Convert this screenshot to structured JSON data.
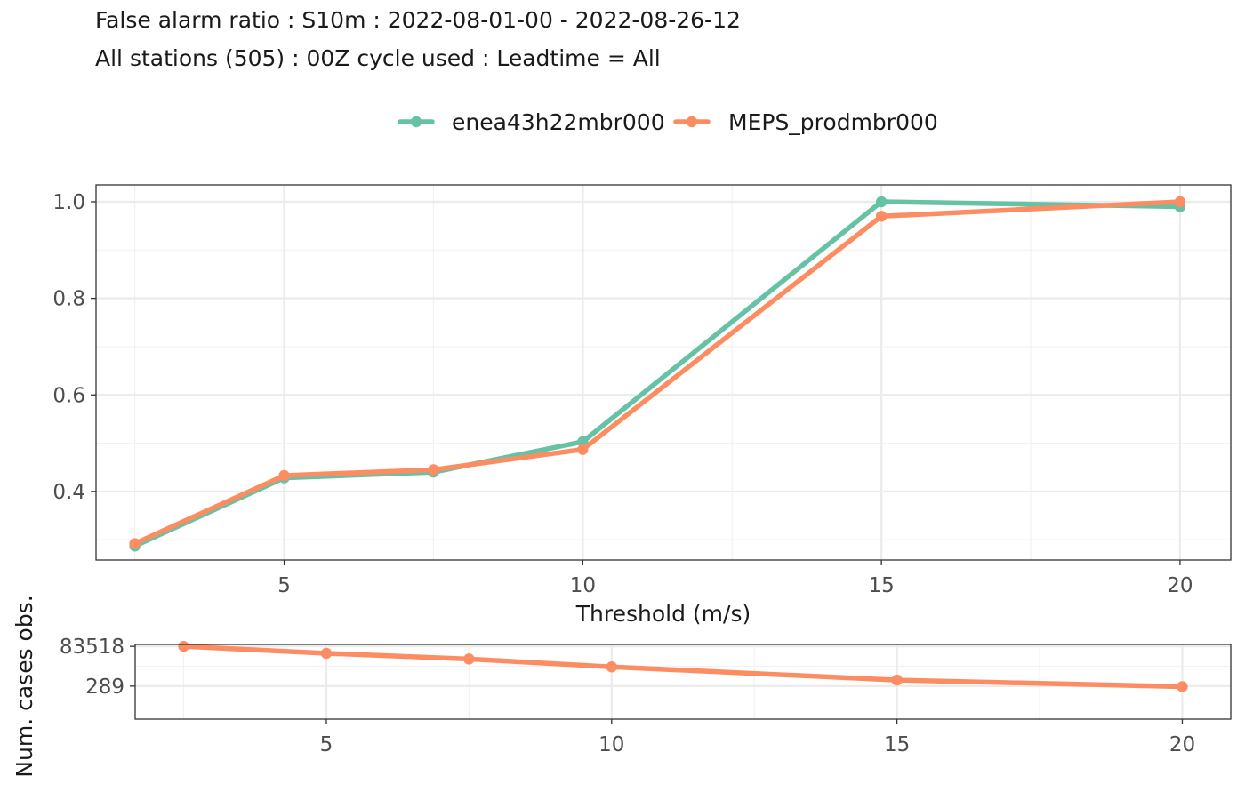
{
  "title_line1": "False alarm ratio : S10m : 2022-08-01-00 - 2022-08-26-12",
  "title_line2": "All stations (505) : 00Z cycle used : Leadtime = All",
  "legend": [
    "enea43h22mbr000",
    "MEPS_prodmbr000"
  ],
  "chart_data": [
    {
      "type": "line",
      "xlabel": "Threshold (m/s)",
      "ylabel": "",
      "xlim": [
        1.85,
        20.85
      ],
      "ylim": [
        0.258,
        1.035
      ],
      "x_ticks": [
        5,
        10,
        15,
        20
      ],
      "y_ticks": [
        0.4,
        0.6,
        0.8,
        1.0
      ],
      "y_tick_labels": [
        "0.4",
        "0.6",
        "0.8",
        "1.0"
      ],
      "grid": true,
      "legend_position": "top",
      "series": [
        {
          "name": "enea43h22mbr000",
          "color": "#66c2a5",
          "x": [
            2.5,
            5,
            7.5,
            10,
            15,
            20
          ],
          "y": [
            0.287,
            0.428,
            0.44,
            0.503,
            1.0,
            0.99
          ]
        },
        {
          "name": "MEPS_prodmbr000",
          "color": "#fc8d62",
          "x": [
            2.5,
            5,
            7.5,
            10,
            15,
            20
          ],
          "y": [
            0.292,
            0.433,
            0.445,
            0.487,
            0.97,
            1.0
          ]
        }
      ]
    },
    {
      "type": "line",
      "xlabel": "",
      "ylabel": "Num. cases obs.",
      "xlim": [
        1.65,
        20.85
      ],
      "scale": "log",
      "ylim": [
        2.6,
        110000
      ],
      "x_ticks": [
        5,
        10,
        15,
        20
      ],
      "y_ticks": [
        289,
        83518
      ],
      "y_tick_labels": [
        "289",
        "83518"
      ],
      "grid": true,
      "series": [
        {
          "name": "MEPS_prodmbr000",
          "color": "#fc8d62",
          "x": [
            2.5,
            5,
            7.5,
            10,
            15,
            20
          ],
          "y": [
            83518,
            31000,
            13800,
            4500,
            680,
            268
          ]
        }
      ]
    }
  ]
}
